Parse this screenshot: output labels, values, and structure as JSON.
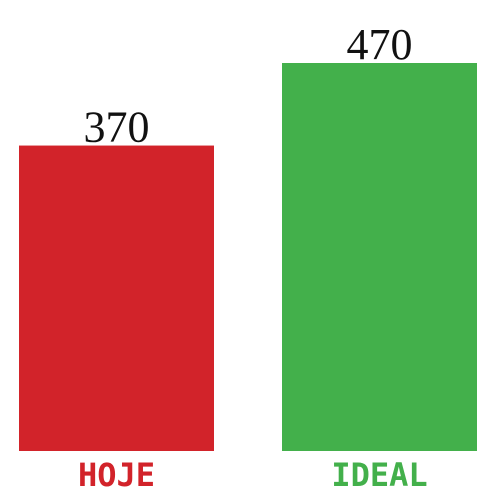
{
  "chart_data": {
    "type": "bar",
    "categories": [
      "HOJE",
      "IDEAL"
    ],
    "values": [
      370,
      470
    ],
    "value_labels": [
      "370",
      "470"
    ],
    "colors": [
      "#d2232a",
      "#43b04b"
    ],
    "title": "",
    "xlabel": "",
    "ylabel": "",
    "ylim": [
      0,
      470
    ],
    "grid": false,
    "legend": "none"
  }
}
